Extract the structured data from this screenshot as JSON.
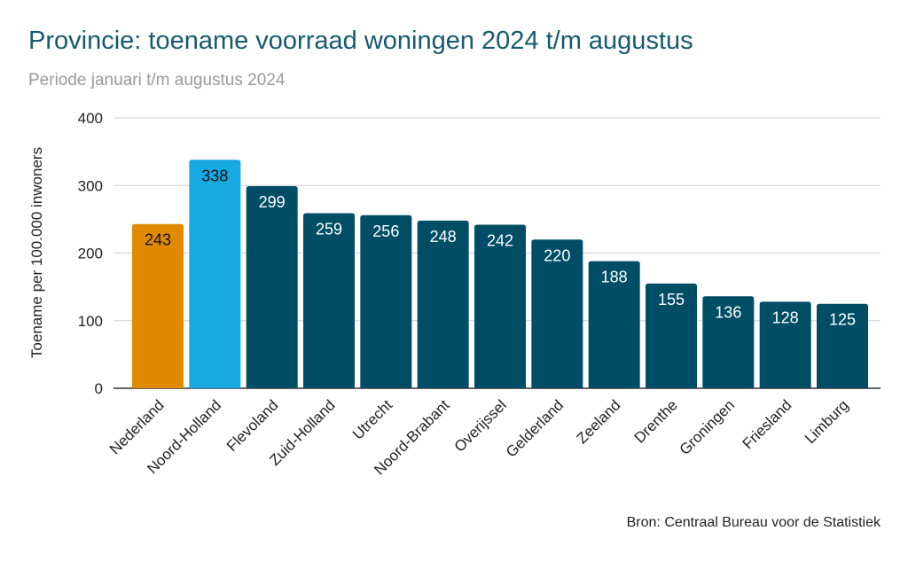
{
  "chart_data": {
    "type": "bar",
    "title": "Provincie: toename voorraad woningen 2024 t/m augustus",
    "subtitle": "Periode januari t/m augustus 2024",
    "xlabel": "",
    "ylabel": "Toename per 100.000 inwoners",
    "ylim": [
      0,
      400
    ],
    "yticks": [
      0,
      100,
      200,
      300,
      400
    ],
    "grid": true,
    "categories": [
      "Nederland",
      "Noord-Holland",
      "Flevoland",
      "Zuid-Holland",
      "Utrecht",
      "Noord-Brabant",
      "Overijssel",
      "Gelderland",
      "Zeeland",
      "Drenthe",
      "Groningen",
      "Friesland",
      "Limburg"
    ],
    "values": [
      243,
      338,
      299,
      259,
      256,
      248,
      242,
      220,
      188,
      155,
      136,
      128,
      125
    ],
    "colors": [
      "#e08a00",
      "#17a9e1",
      "#004d66",
      "#004d66",
      "#004d66",
      "#004d66",
      "#004d66",
      "#004d66",
      "#004d66",
      "#004d66",
      "#004d66",
      "#004d66",
      "#004d66"
    ],
    "label_colors": [
      "#111111",
      "#111111",
      "#ffffff",
      "#ffffff",
      "#ffffff",
      "#ffffff",
      "#ffffff",
      "#ffffff",
      "#ffffff",
      "#ffffff",
      "#ffffff",
      "#ffffff",
      "#ffffff"
    ],
    "source": "Bron: Centraal Bureau voor de Statistiek"
  }
}
